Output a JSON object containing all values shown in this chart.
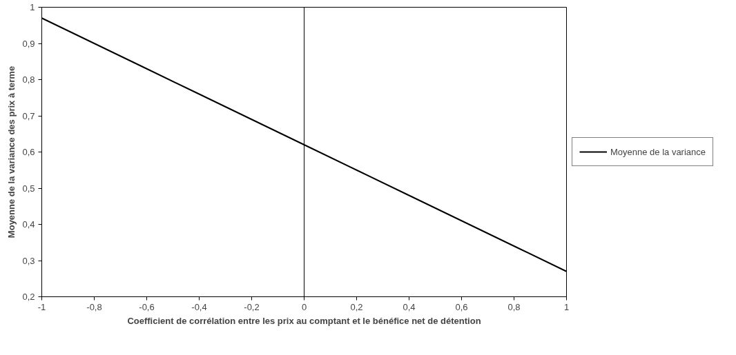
{
  "chart_data": {
    "type": "line",
    "xlabel": "Coefficient de corrélation entre les prix au comptant et le bénéfice net de détention",
    "ylabel": "Moyenne de la variance des prix à terme",
    "x": [
      -1,
      -0.8,
      -0.6,
      -0.4,
      -0.2,
      0,
      0.2,
      0.4,
      0.6,
      0.8,
      1
    ],
    "series": [
      {
        "name": "Moyenne de la variance",
        "color": "#000000",
        "values": [
          0.97,
          0.9,
          0.83,
          0.76,
          0.69,
          0.62,
          0.55,
          0.48,
          0.41,
          0.34,
          0.27
        ]
      }
    ],
    "xlim": [
      -1,
      1
    ],
    "xticks": [
      {
        "value": -1,
        "label": "-1"
      },
      {
        "value": -0.8,
        "label": "-0,8"
      },
      {
        "value": -0.6,
        "label": "-0,6"
      },
      {
        "value": -0.4,
        "label": "-0,4"
      },
      {
        "value": -0.2,
        "label": "-0,2"
      },
      0,
      {
        "value": 0.2,
        "label": "0,2"
      },
      {
        "value": 0.4,
        "label": "0,4"
      },
      {
        "value": 0.6,
        "label": "0,6"
      },
      {
        "value": 0.8,
        "label": "0,8"
      },
      1
    ],
    "ylim": [
      0.2,
      1
    ],
    "yticks": [
      {
        "value": 0.2,
        "label": "0,2"
      },
      {
        "value": 0.3,
        "label": "0,3"
      },
      {
        "value": 0.4,
        "label": "0,4"
      },
      {
        "value": 0.5,
        "label": "0,5"
      },
      {
        "value": 0.6,
        "label": "0,6"
      },
      {
        "value": 0.7,
        "label": "0,7"
      },
      {
        "value": 0.8,
        "label": "0,8"
      },
      {
        "value": 0.9,
        "label": "0,9"
      },
      1
    ],
    "ref_lines": [
      {
        "axis": "x",
        "value": 0,
        "color": "#000000"
      }
    ],
    "grid": false,
    "legend": "right",
    "marker": "none",
    "line_style": "solid"
  }
}
